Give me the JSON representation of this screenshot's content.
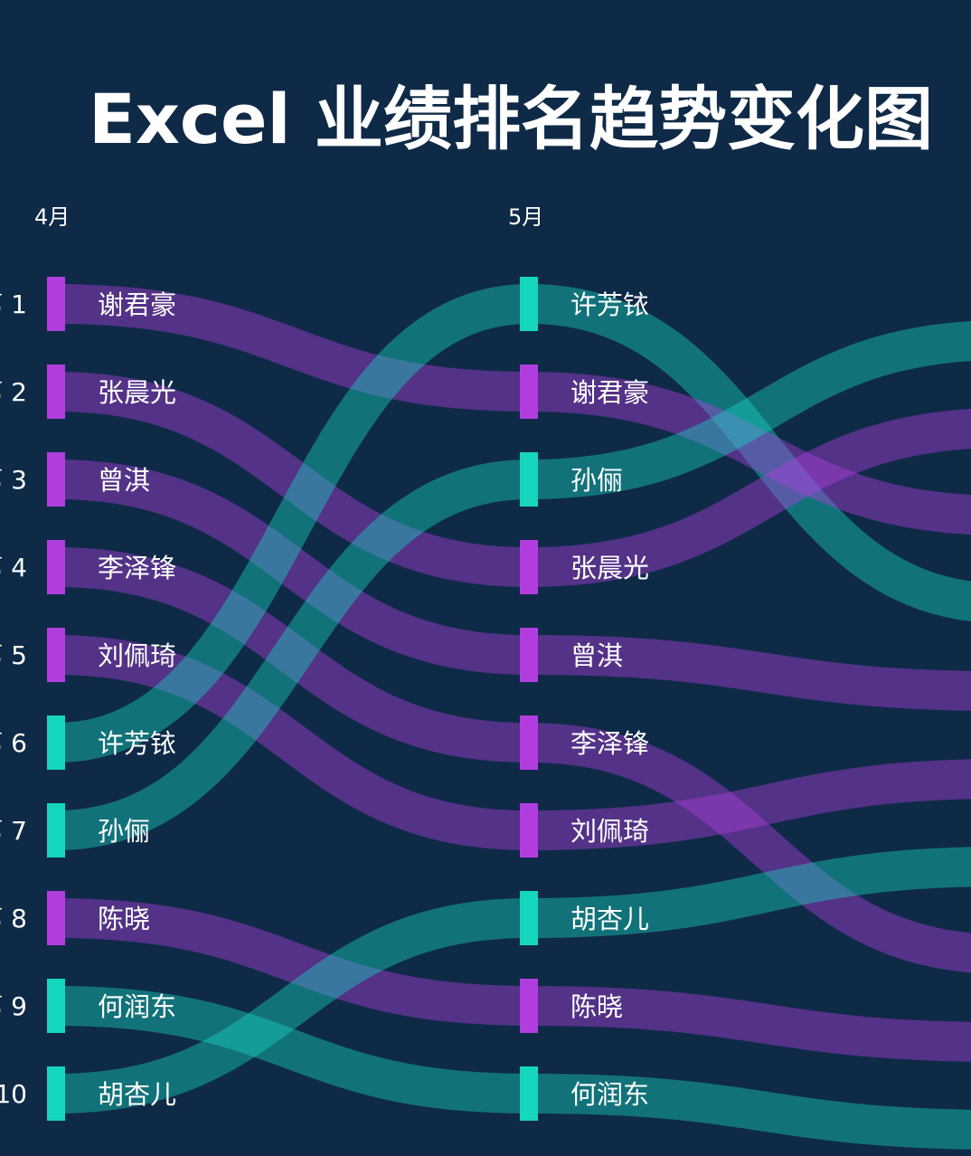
{
  "title": "Excel 业绩排名趋势变化图",
  "colors": {
    "background": "#0e2a47",
    "purple": "#b23ee0",
    "teal": "#17d6c0",
    "title": "#ffffff",
    "text": "#ffffff"
  },
  "chart_data": {
    "type": "bump",
    "title": "Excel 业绩排名趋势变化图",
    "periods": [
      "4月",
      "5月"
    ],
    "rank_labels": [
      "1",
      "2",
      "3",
      "4",
      "5",
      "6",
      "7",
      "8",
      "9",
      "10"
    ],
    "rank_prefix": "第",
    "columns": [
      {
        "period": "4月",
        "entries": [
          {
            "rank": 1,
            "name": "谢君豪",
            "color": "purple"
          },
          {
            "rank": 2,
            "name": "张晨光",
            "color": "purple"
          },
          {
            "rank": 3,
            "name": "曾淇",
            "color": "purple"
          },
          {
            "rank": 4,
            "name": "李泽锋",
            "color": "purple"
          },
          {
            "rank": 5,
            "name": "刘佩琦",
            "color": "purple"
          },
          {
            "rank": 6,
            "name": "许芳铱",
            "color": "teal"
          },
          {
            "rank": 7,
            "name": "孙俪",
            "color": "teal"
          },
          {
            "rank": 8,
            "name": "陈晓",
            "color": "purple"
          },
          {
            "rank": 9,
            "name": "何润东",
            "color": "teal"
          },
          {
            "rank": 10,
            "name": "胡杏儿",
            "color": "teal"
          }
        ]
      },
      {
        "period": "5月",
        "entries": [
          {
            "rank": 1,
            "name": "许芳铱",
            "color": "teal"
          },
          {
            "rank": 2,
            "name": "谢君豪",
            "color": "purple"
          },
          {
            "rank": 3,
            "name": "孙俪",
            "color": "teal"
          },
          {
            "rank": 4,
            "name": "张晨光",
            "color": "purple"
          },
          {
            "rank": 5,
            "name": "曾淇",
            "color": "purple"
          },
          {
            "rank": 6,
            "name": "李泽锋",
            "color": "purple"
          },
          {
            "rank": 7,
            "name": "刘佩琦",
            "color": "purple"
          },
          {
            "rank": 8,
            "name": "胡杏儿",
            "color": "teal"
          },
          {
            "rank": 9,
            "name": "陈晓",
            "color": "purple"
          },
          {
            "rank": 10,
            "name": "何润东",
            "color": "teal"
          }
        ]
      }
    ],
    "offscreen_next_ranks": {
      "谢君豪": 3,
      "许芳铱": 4,
      "张晨光": 2,
      "孙俪": 1,
      "曾淇": 5,
      "李泽锋": 8,
      "刘佩琦": 6,
      "胡杏儿": 7,
      "陈晓": 9,
      "何润东": 10
    }
  }
}
